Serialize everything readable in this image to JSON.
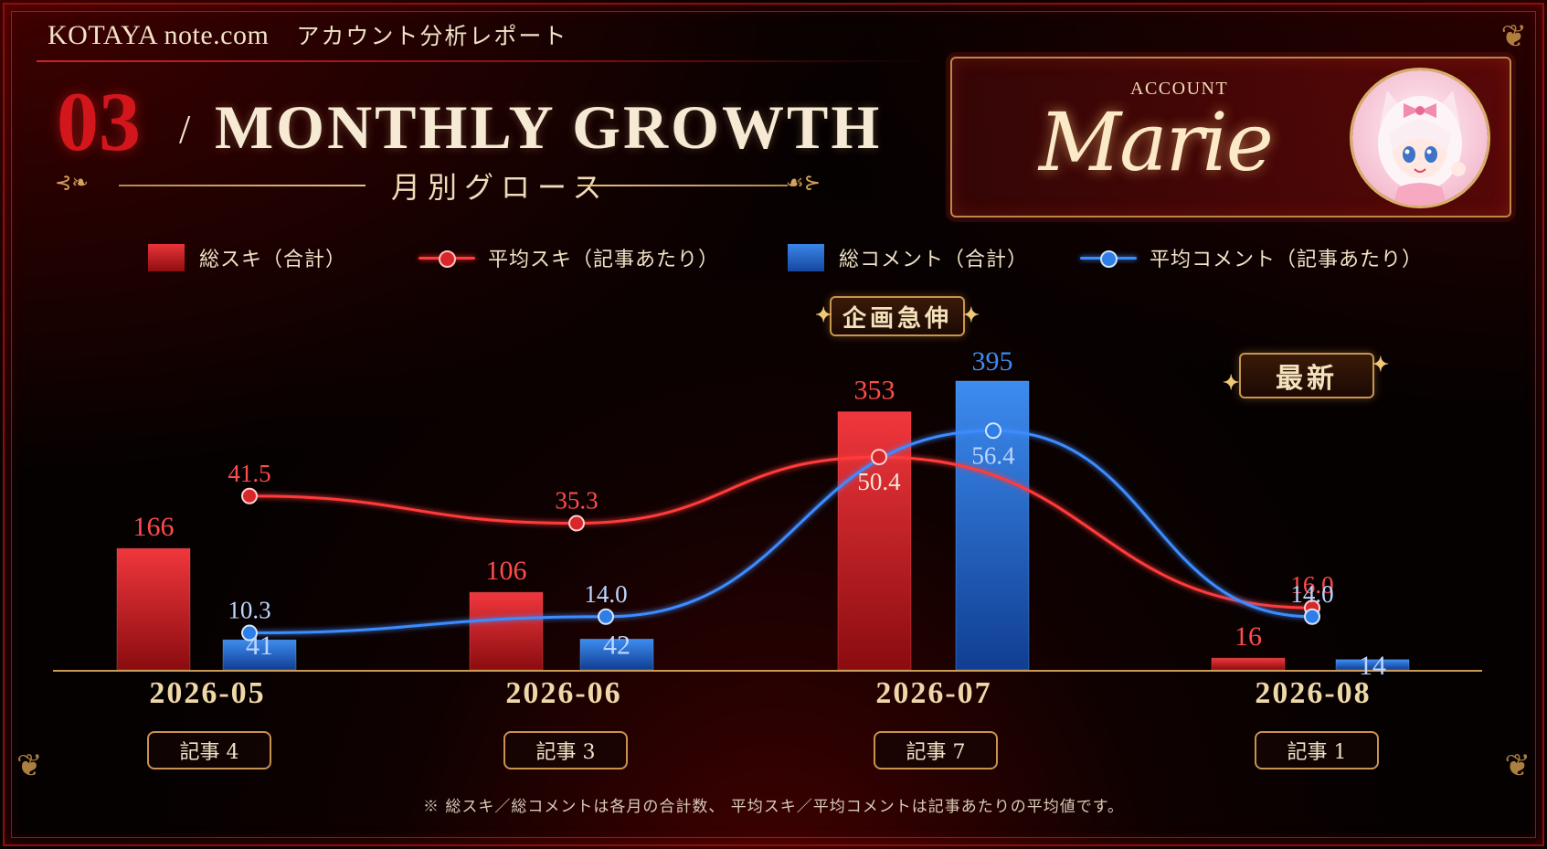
{
  "header": {
    "brand": "KOTAYA note.com",
    "report_title": "アカウント分析レポート",
    "section_number": "03",
    "slash": "/",
    "section_title": "MONTHLY GROWTH",
    "section_title_jp": "月別グロース"
  },
  "account": {
    "label": "ACCOUNT",
    "name": "Marie"
  },
  "legend": {
    "total_likes": "総スキ（合計）",
    "avg_likes": "平均スキ（記事あたり）",
    "total_comments": "総コメント（合計）",
    "avg_comments": "平均コメント（記事あたり）"
  },
  "badges": {
    "surge": "企画急伸",
    "latest": "最新"
  },
  "months": [
    {
      "label": "2026-05",
      "articles": "記事 4"
    },
    {
      "label": "2026-06",
      "articles": "記事 3"
    },
    {
      "label": "2026-07",
      "articles": "記事 7"
    },
    {
      "label": "2026-08",
      "articles": "記事 1"
    }
  ],
  "footnote": "※ 総スキ／総コメントは各月の合計数、 平均スキ／平均コメントは記事あたりの平均値です。",
  "colors": {
    "red": "#e8343a",
    "blue": "#3c86e8",
    "gold": "#c9954e"
  },
  "chart_data": {
    "type": "bar",
    "categories": [
      "2026-05",
      "2026-06",
      "2026-07",
      "2026-08"
    ],
    "series": [
      {
        "name": "総スキ（合計）",
        "kind": "bar",
        "values": [
          166,
          106,
          353,
          16
        ],
        "labels": [
          "166",
          "106",
          "353",
          "16"
        ]
      },
      {
        "name": "総コメント（合計）",
        "kind": "bar",
        "values": [
          41,
          42,
          395,
          14
        ],
        "labels": [
          "41",
          "42",
          "395",
          "14"
        ]
      },
      {
        "name": "平均スキ（記事あたり）",
        "kind": "line",
        "values": [
          41.5,
          35.3,
          50.4,
          16.0
        ],
        "labels": [
          "41.5",
          "35.3",
          "50.4",
          "16.0"
        ]
      },
      {
        "name": "平均コメント（記事あたり）",
        "kind": "line",
        "values": [
          10.3,
          14.0,
          56.4,
          14.0
        ],
        "labels": [
          "10.3",
          "14.0",
          "56.4",
          "14.0"
        ]
      }
    ],
    "legend": "top",
    "grid": false
  }
}
